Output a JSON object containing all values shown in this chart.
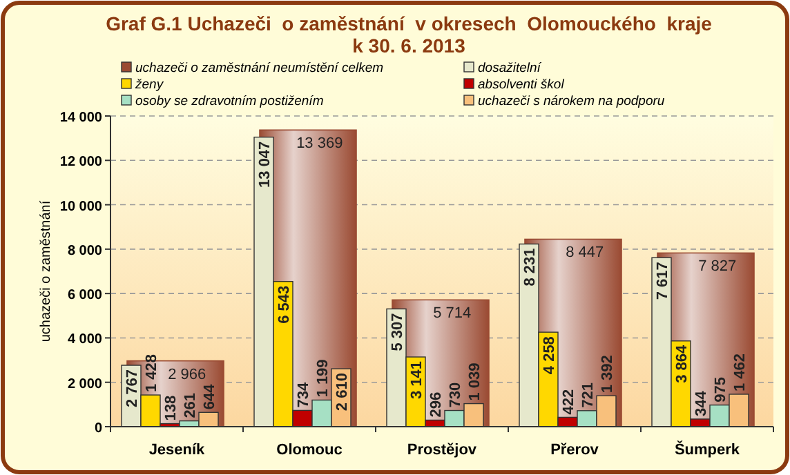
{
  "chart_data": {
    "type": "bar",
    "title": "Graf G.1 Uchazeči  o zaměstnání  v okresech  Olomouckého  kraje\nk 30. 6. 2013",
    "ylabel": "uchazeči o zaměstnání",
    "categories": [
      "Jeseník",
      "Olomouc",
      "Prostějov",
      "Přerov",
      "Šumperk"
    ],
    "series": [
      {
        "name": "uchazeči o zaměstnání neumístění celkem",
        "color": "#9a4a32",
        "values": [
          2966,
          13369,
          5714,
          8447,
          7827
        ]
      },
      {
        "name": "dosažitelní",
        "color": "#e6e8cc",
        "values": [
          2767,
          13047,
          5307,
          8231,
          7617
        ]
      },
      {
        "name": "ženy",
        "color": "#ffd800",
        "values": [
          1428,
          6543,
          3141,
          4258,
          3864
        ]
      },
      {
        "name": "absolventi škol",
        "color": "#c00000",
        "values": [
          138,
          734,
          296,
          422,
          344
        ]
      },
      {
        "name": "osoby se zdravotním postižením",
        "color": "#a6e0c4",
        "values": [
          261,
          1199,
          730,
          721,
          975
        ]
      },
      {
        "name": "uchazeči s nárokem na podporu",
        "color": "#f8c07c",
        "values": [
          644,
          2610,
          1039,
          1392,
          1462
        ]
      }
    ],
    "ylim": [
      0,
      14000
    ],
    "yticks": [
      0,
      {
        "value": 2000,
        "label": "2 000"
      },
      {
        "value": 4000,
        "label": "4 000"
      },
      {
        "value": 6000,
        "label": "6 000"
      },
      {
        "value": 8000,
        "label": "8 000"
      },
      {
        "value": 10000,
        "label": "10 000"
      },
      {
        "value": 12000,
        "label": "12 000"
      },
      {
        "value": 14000,
        "label": "14 000"
      }
    ],
    "grid": "y",
    "legend": "top",
    "data_labels": true
  }
}
